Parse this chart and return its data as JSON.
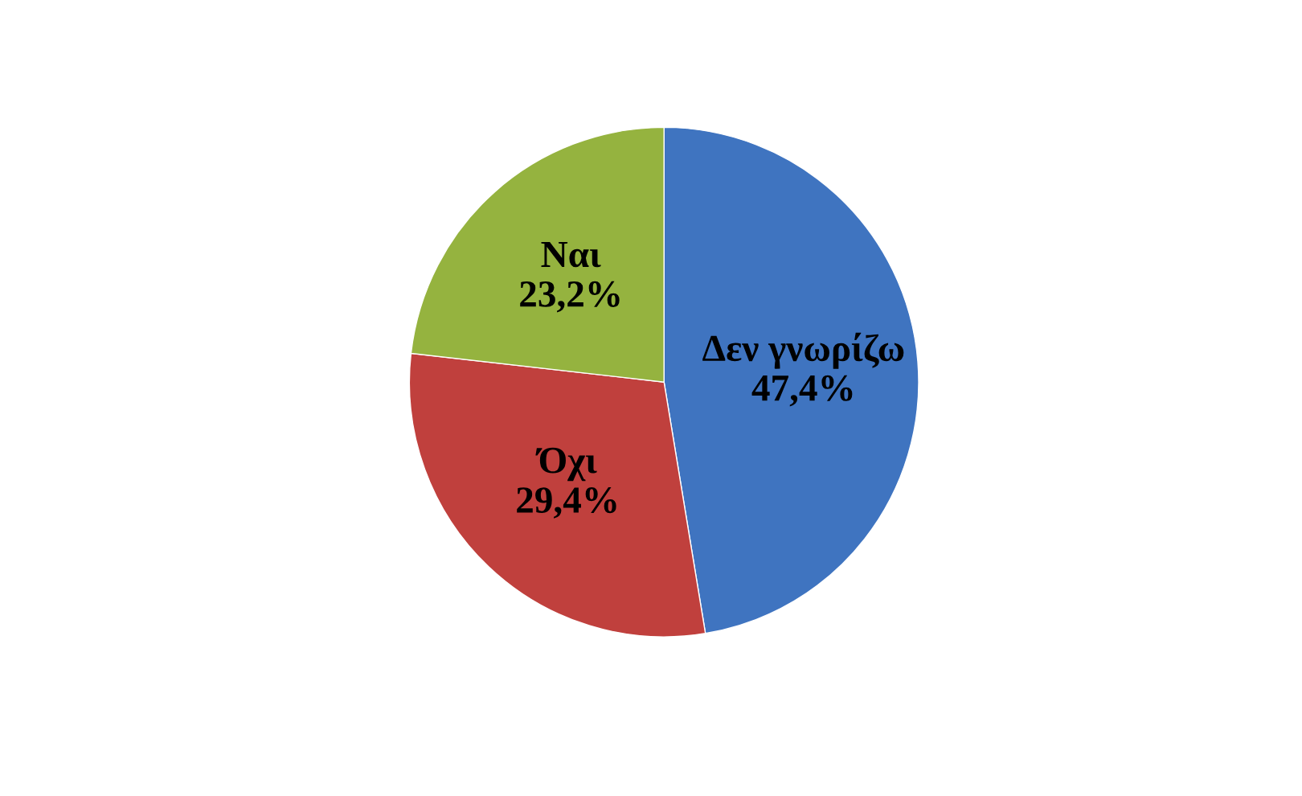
{
  "chart_data": {
    "type": "pie",
    "categories": [
      "Δεν γνωρίζω",
      "Όχι",
      "Ναι"
    ],
    "values": [
      47.4,
      29.4,
      23.2
    ],
    "value_labels": [
      "47,4%",
      "29,4%",
      "23,2%"
    ],
    "colors": [
      "#3f74c0",
      "#c0403d",
      "#95b33f"
    ],
    "legend": false
  }
}
